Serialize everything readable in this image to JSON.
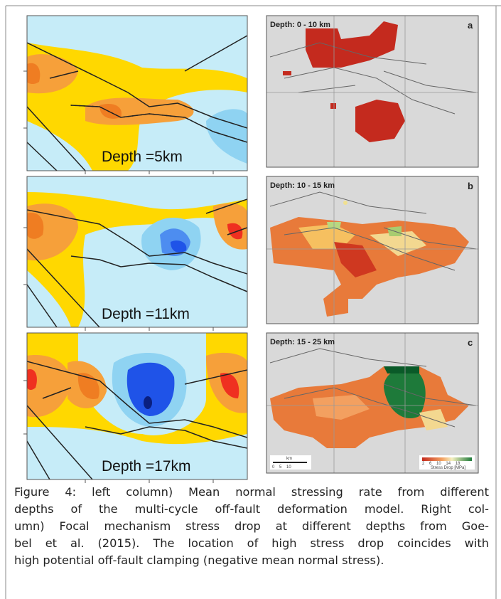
{
  "left_panels": [
    {
      "label": "Depth =5km"
    },
    {
      "label": "Depth =11km"
    },
    {
      "label": "Depth =17km"
    }
  ],
  "right_panels": [
    {
      "label": "Depth:  0 - 10 km",
      "letter": "a"
    },
    {
      "label": "Depth: 10 - 15 km",
      "letter": "b"
    },
    {
      "label": "Depth: 15 - 25 km",
      "letter": "c",
      "scale_unit": "km",
      "scale_ticks": "0    5    10",
      "colorbar_ticks": "2    6    10    14    18",
      "colorbar_label": "Stress Drop [MPa]"
    }
  ],
  "caption": {
    "lines": [
      "Figure 4: left column) Mean normal stressing rate from different",
      "depths of the multi-cycle off-fault deformation model. Right col-",
      "umn) Focal mechanism stress drop at different depths from Goe-",
      "bel et al. (2015). The location of high stress drop coincides with",
      "high potential off-fault clamping (negative mean normal stress)."
    ]
  }
}
